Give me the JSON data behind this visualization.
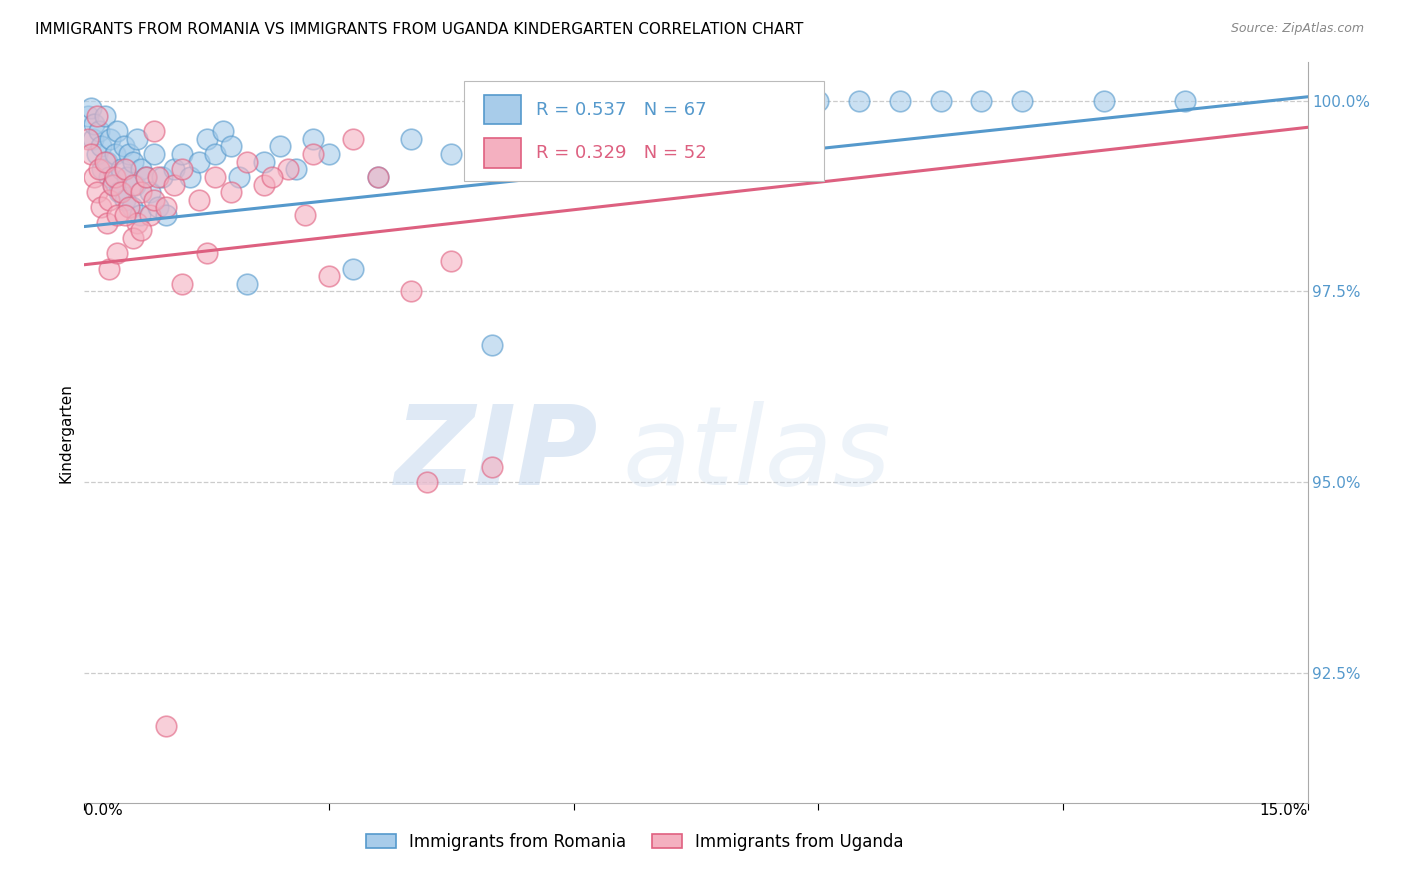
{
  "title": "IMMIGRANTS FROM ROMANIA VS IMMIGRANTS FROM UGANDA KINDERGARTEN CORRELATION CHART",
  "source": "Source: ZipAtlas.com",
  "ylabel": "Kindergarten",
  "xmin": 0.0,
  "xmax": 15.0,
  "ymin": 90.8,
  "ymax": 100.5,
  "romania_R": 0.537,
  "romania_N": 67,
  "uganda_R": 0.329,
  "uganda_N": 52,
  "romania_color": "#a8ccea",
  "uganda_color": "#f4b0c0",
  "romania_edge_color": "#5599cc",
  "uganda_edge_color": "#e06080",
  "romania_line_color": "#5599cc",
  "uganda_line_color": "#dd6080",
  "background_color": "#ffffff",
  "grid_color": "#cccccc",
  "ytick_positions": [
    92.5,
    95.0,
    97.5,
    100.0
  ],
  "ytick_labels": [
    "92.5%",
    "95.0%",
    "97.5%",
    "100.0%"
  ],
  "rom_line_x0": 0.0,
  "rom_line_y0": 98.35,
  "rom_line_x1": 15.0,
  "rom_line_y1": 100.05,
  "uga_line_x0": 0.0,
  "uga_line_y0": 97.85,
  "uga_line_x1": 15.0,
  "uga_line_y1": 99.65,
  "romania_x": [
    0.05,
    0.08,
    0.1,
    0.12,
    0.15,
    0.18,
    0.2,
    0.22,
    0.25,
    0.28,
    0.3,
    0.32,
    0.35,
    0.38,
    0.4,
    0.42,
    0.45,
    0.48,
    0.5,
    0.52,
    0.55,
    0.58,
    0.6,
    0.62,
    0.65,
    0.68,
    0.7,
    0.75,
    0.8,
    0.85,
    0.9,
    0.95,
    1.0,
    1.1,
    1.2,
    1.3,
    1.4,
    1.5,
    1.6,
    1.7,
    1.8,
    1.9,
    2.0,
    2.2,
    2.4,
    2.6,
    2.8,
    3.0,
    3.3,
    3.6,
    4.0,
    4.5,
    5.0,
    5.5,
    6.5,
    7.5,
    8.5,
    9.5,
    10.5,
    11.5,
    12.5,
    13.5,
    7.0,
    8.0,
    9.0,
    10.0,
    11.0
  ],
  "romania_y": [
    99.8,
    99.9,
    99.5,
    99.7,
    99.3,
    99.6,
    99.4,
    99.1,
    99.8,
    99.2,
    99.0,
    99.5,
    98.9,
    99.3,
    99.6,
    98.8,
    99.1,
    99.4,
    98.7,
    99.0,
    99.3,
    98.6,
    99.2,
    98.9,
    99.5,
    98.5,
    99.1,
    99.0,
    98.8,
    99.3,
    98.6,
    99.0,
    98.5,
    99.1,
    99.3,
    99.0,
    99.2,
    99.5,
    99.3,
    99.6,
    99.4,
    99.0,
    97.6,
    99.2,
    99.4,
    99.1,
    99.5,
    99.3,
    97.8,
    99.0,
    99.5,
    99.3,
    96.8,
    99.6,
    100.0,
    100.0,
    100.0,
    100.0,
    100.0,
    100.0,
    100.0,
    100.0,
    99.9,
    100.0,
    100.0,
    100.0,
    100.0
  ],
  "uganda_x": [
    0.05,
    0.08,
    0.12,
    0.15,
    0.18,
    0.2,
    0.25,
    0.28,
    0.3,
    0.35,
    0.38,
    0.4,
    0.45,
    0.5,
    0.55,
    0.6,
    0.65,
    0.7,
    0.75,
    0.8,
    0.85,
    0.9,
    1.0,
    1.1,
    1.2,
    1.4,
    1.6,
    1.8,
    2.0,
    2.2,
    2.5,
    2.8,
    3.0,
    3.3,
    3.6,
    4.0,
    4.5,
    5.0,
    0.5,
    1.5,
    0.3,
    0.6,
    1.2,
    0.4,
    0.7,
    6.8,
    0.15,
    0.85,
    2.3,
    2.7,
    4.2,
    1.0
  ],
  "uganda_y": [
    99.5,
    99.3,
    99.0,
    98.8,
    99.1,
    98.6,
    99.2,
    98.4,
    98.7,
    98.9,
    99.0,
    98.5,
    98.8,
    99.1,
    98.6,
    98.9,
    98.4,
    98.8,
    99.0,
    98.5,
    98.7,
    99.0,
    98.6,
    98.9,
    99.1,
    98.7,
    99.0,
    98.8,
    99.2,
    98.9,
    99.1,
    99.3,
    97.7,
    99.5,
    99.0,
    97.5,
    97.9,
    95.2,
    98.5,
    98.0,
    97.8,
    98.2,
    97.6,
    98.0,
    98.3,
    99.2,
    99.8,
    99.6,
    99.0,
    98.5,
    95.0,
    91.8
  ]
}
